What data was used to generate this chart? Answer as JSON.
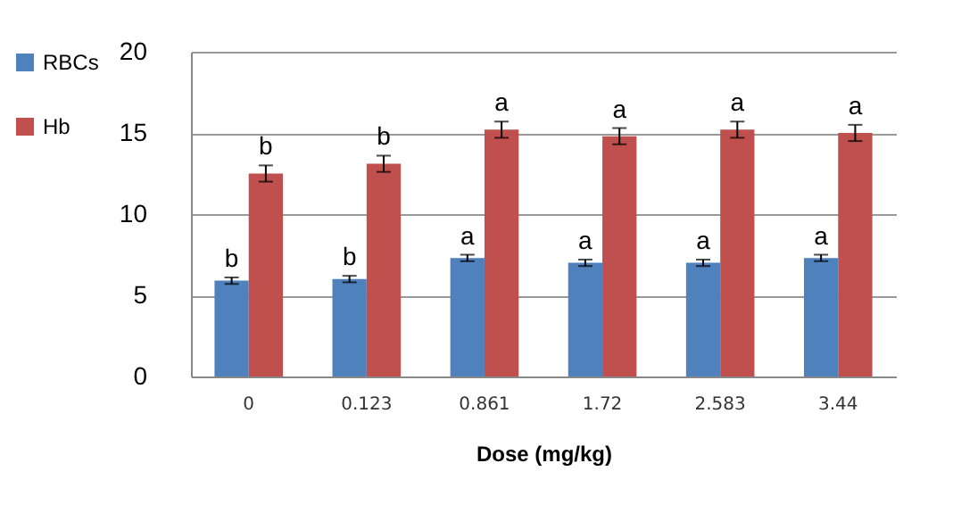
{
  "chart_data": {
    "type": "bar",
    "xlabel": "Dose (mg/kg)",
    "categories": [
      "0",
      "0.123",
      "0.861",
      "1.72",
      "2.583",
      "3.44"
    ],
    "series": [
      {
        "name": "RBCs",
        "color": "#4f81bd",
        "values": [
          5.9,
          6.0,
          7.3,
          7.0,
          7.0,
          7.3
        ],
        "errors": [
          0.2,
          0.2,
          0.2,
          0.2,
          0.2,
          0.2
        ],
        "value_labels": [
          "b",
          "b",
          "a",
          "a",
          "a",
          "a"
        ]
      },
      {
        "name": "Hb",
        "color": "#c0504d",
        "values": [
          12.5,
          13.1,
          15.2,
          14.8,
          15.2,
          15.0
        ],
        "errors": [
          0.5,
          0.5,
          0.5,
          0.5,
          0.5,
          0.5
        ],
        "value_labels": [
          "b",
          "b",
          "a",
          "a",
          "a",
          "a"
        ]
      }
    ],
    "ylim": [
      0,
      20
    ],
    "yticks": [
      0,
      5,
      10,
      15,
      20
    ],
    "grid": "y",
    "legend": "left"
  }
}
